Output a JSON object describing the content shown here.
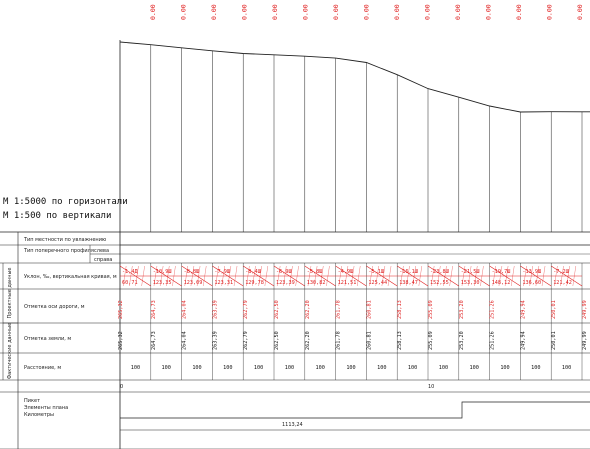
{
  "scale": {
    "horizontal": "М 1:5000 по горизонтали",
    "vertical": "М 1:500 по вертикали"
  },
  "top_values": [
    "0.00",
    "0.00",
    "0.00",
    "0.00",
    "0.00",
    "0.00",
    "0.00",
    "0.00",
    "0.00",
    "0.00",
    "0.00",
    "0.00",
    "0.00",
    "0.00",
    "0.00",
    "0.00"
  ],
  "rows": {
    "terrain_type": "Тип местности по увлажнению",
    "cross_profile": "Тип поперечного профиля",
    "left": "слева",
    "right": "справа",
    "slopes": "Уклон, ‰, вертикальная кривая, м",
    "road_marks": "Отметка оси дороги, м",
    "ground_marks": "Отметка земли, м",
    "distances": "Расстояние, м",
    "picket": "Пикет",
    "plan_elements": "Элементы плана",
    "kilometers": "Километры"
  },
  "groups": {
    "design": "Проектные данные",
    "actual": "Фактические данные"
  },
  "slope_labels": {
    "top": [
      "-1,4Д",
      "-10,9Ш",
      "-8,8Ш",
      "-7,9Ш",
      "-8,4Ш",
      "-6,9Ш",
      "-5,8Ш",
      "-4,9Ш",
      "-5,1Ш",
      "-16,1Ш",
      "-23,8Ш",
      "-21,5Ш",
      "-19,7Ш",
      "-13,9Ш",
      "-7,2Ш"
    ],
    "bottom": [
      "60,71",
      "123,35",
      "123,09",
      "123,31",
      "129,78",
      "123,39",
      "130,82",
      "121,51",
      "125,44",
      "138,47",
      "152,55",
      "153,30",
      "148,12",
      "136,60",
      "121,42"
    ]
  },
  "road_elevations": [
    "265,32",
    "264,73",
    "264,04",
    "263,39",
    "262,79",
    "262,50",
    "262,20",
    "261,78",
    "260,81",
    "258,13",
    "255,09",
    "253,20",
    "251,26",
    "249,94",
    "250,01",
    "249,99"
  ],
  "ground_elevations": [
    "265,32",
    "264,73",
    "264,04",
    "263,39",
    "262,79",
    "262,50",
    "262,20",
    "261,78",
    "260,81",
    "258,13",
    "255,09",
    "253,20",
    "251,26",
    "249,94",
    "250,01",
    "249,99"
  ],
  "distance_values": [
    "100",
    "100",
    "100",
    "100",
    "100",
    "100",
    "100",
    "100",
    "100",
    "100",
    "100",
    "100",
    "100",
    "100",
    "100"
  ],
  "picket_marks": [
    "0",
    "10"
  ],
  "kilometer_value": "1113,24",
  "colors": {
    "line": "#222222",
    "red": "#e02020"
  }
}
